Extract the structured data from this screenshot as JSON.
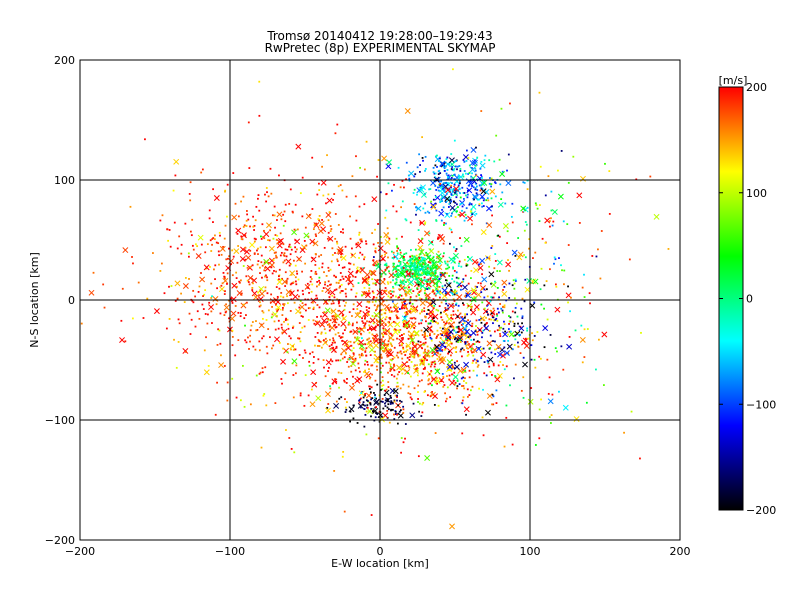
{
  "chart_data": {
    "type": "scatter",
    "title": "Tromsø 20140412 19:28:00–19:29:43",
    "subtitle": "RwPretec (8p) EXPERIMENTAL SKYMAP",
    "xlabel": "E-W location [km]",
    "ylabel": "N-S location [km]",
    "xlim": [
      -200,
      200
    ],
    "ylim": [
      -200,
      200
    ],
    "xticks": [
      -200,
      -100,
      0,
      100,
      200
    ],
    "yticks": [
      -200,
      -100,
      0,
      100,
      200
    ],
    "xtick_labels": [
      "−200",
      "−100",
      "0",
      "100",
      "200"
    ],
    "ytick_labels": [
      "−200",
      "−100",
      "0",
      "100",
      "200"
    ],
    "grid": true,
    "marker_styles": [
      "dot",
      "x"
    ],
    "colorbar": {
      "label": "[m/s]",
      "range": [
        -200,
        200
      ],
      "ticks": [
        200,
        100,
        0,
        -100,
        -200
      ],
      "tick_labels": [
        "200",
        "100",
        "0",
        "−100",
        "−200"
      ],
      "colormap": [
        "#000000",
        "#0000ff",
        "#00ffff",
        "#00ff00",
        "#ffff00",
        "#ff0000"
      ]
    },
    "clusters": [
      {
        "center": [
          20,
          -30
        ],
        "spread": [
          55,
          45
        ],
        "count": 1100,
        "velocity_mean": 170,
        "velocity_spread": 40
      },
      {
        "center": [
          25,
          25
        ],
        "spread": [
          20,
          12
        ],
        "count": 380,
        "velocity_mean": 10,
        "velocity_spread": 30
      },
      {
        "center": [
          50,
          95
        ],
        "spread": [
          25,
          22
        ],
        "count": 330,
        "velocity_mean": -80,
        "velocity_spread": 50
      },
      {
        "center": [
          65,
          -20
        ],
        "spread": [
          35,
          40
        ],
        "count": 220,
        "velocity_mean": -150,
        "velocity_spread": 50
      },
      {
        "center": [
          0,
          -90
        ],
        "spread": [
          20,
          12
        ],
        "count": 110,
        "velocity_mean": -190,
        "velocity_spread": 20
      },
      {
        "center": [
          -60,
          20
        ],
        "spread": [
          70,
          60
        ],
        "count": 700,
        "velocity_mean": 185,
        "velocity_spread": 30
      },
      {
        "center": [
          0,
          0
        ],
        "spread": [
          120,
          110
        ],
        "count": 500,
        "velocity_mean": 170,
        "velocity_spread": 60
      },
      {
        "center": [
          80,
          20
        ],
        "spread": [
          70,
          90
        ],
        "count": 280,
        "velocity_mean": 60,
        "velocity_spread": 120
      }
    ]
  }
}
